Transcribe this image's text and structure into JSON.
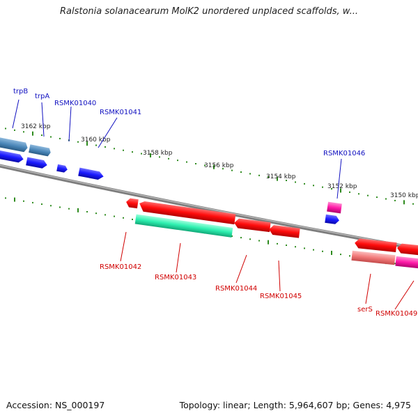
{
  "title": "Ralstonia solanacearum MolK2 unordered unplaced scaffolds, w...",
  "footer": {
    "accession": "Accession: NS_000197",
    "summary": "Topology: linear; Length: 5,964,607 bp; Genes: 4,975"
  },
  "colors": {
    "background": "#ffffff",
    "backbone": "#8c8c8c",
    "tick": "#2e8b1e",
    "label_forward": "#1010c0",
    "label_reverse": "#d00000",
    "gene_blue": "#1a1aff",
    "gene_steel": "#4a86b8",
    "gene_red": "#ff0d0d",
    "gene_green": "#2ef0b0",
    "gene_magenta": "#ff1aa8",
    "gene_pink": "#f27a7a"
  },
  "scale_labels": [
    "3162 kbp",
    "3160 kbp",
    "3158 kbp",
    "3156 kbp",
    "3154 kbp",
    "3152 kbp",
    "3150 kbp"
  ],
  "gene_labels": [
    {
      "text": "trpB",
      "strand": "forward"
    },
    {
      "text": "trpA",
      "strand": "forward"
    },
    {
      "text": "RSMK01040",
      "strand": "forward"
    },
    {
      "text": "RSMK01041",
      "strand": "forward"
    },
    {
      "text": "RSMK01046",
      "strand": "forward"
    },
    {
      "text": "RSMK01042",
      "strand": "reverse"
    },
    {
      "text": "RSMK01043",
      "strand": "reverse"
    },
    {
      "text": "RSMK01044",
      "strand": "reverse"
    },
    {
      "text": "RSMK01045",
      "strand": "reverse"
    },
    {
      "text": "serS",
      "strand": "reverse"
    },
    {
      "text": "RSMK01049",
      "strand": "reverse"
    }
  ]
}
